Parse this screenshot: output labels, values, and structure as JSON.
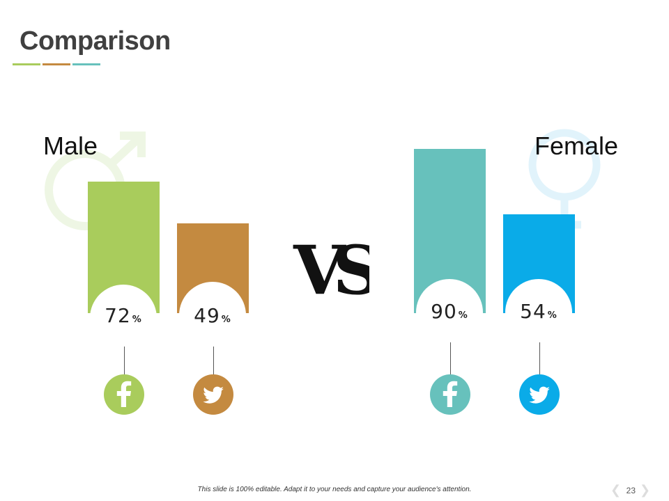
{
  "title": "Comparison",
  "accent_colors": [
    "#a9cc5c",
    "#c48a40",
    "#67c1bc"
  ],
  "male": {
    "label": "Male",
    "symbol_icon": "male-symbol-icon"
  },
  "female": {
    "label": "Female",
    "symbol_icon": "female-symbol-icon"
  },
  "vs_text": "VS",
  "chart_data": {
    "type": "bar",
    "unit": "%",
    "groups": [
      {
        "name": "Male",
        "bars": [
          {
            "platform": "facebook",
            "value": 72,
            "label": "72",
            "color": "#a9cc5c",
            "icon": "facebook-icon"
          },
          {
            "platform": "twitter",
            "value": 49,
            "label": "49",
            "color": "#c48a40",
            "icon": "twitter-icon"
          }
        ]
      },
      {
        "name": "Female",
        "bars": [
          {
            "platform": "facebook",
            "value": 90,
            "label": "90",
            "color": "#67c1bc",
            "icon": "facebook-icon"
          },
          {
            "platform": "twitter",
            "value": 54,
            "label": "54",
            "color": "#0aabe8",
            "icon": "twitter-icon"
          }
        ]
      }
    ]
  },
  "footer": "This slide is 100% editable. Adapt it to your needs and capture your audience's attention.",
  "page_number": "23"
}
